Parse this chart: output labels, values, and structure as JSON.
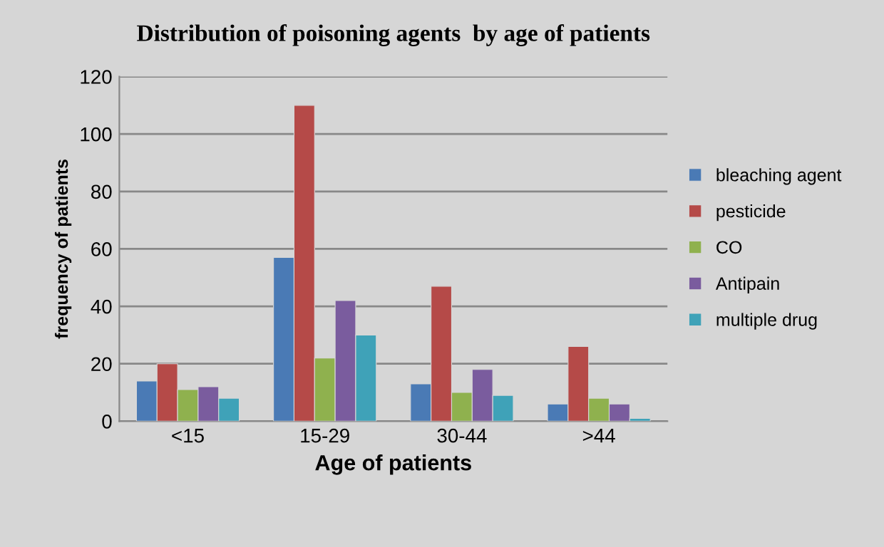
{
  "chart_data": {
    "type": "bar",
    "title": "Distribution of poisoning agents  by age of patients",
    "xlabel": "Age of patients",
    "ylabel": "frequency of patients",
    "categories": [
      "<15",
      "15-29",
      "30-44",
      ">44"
    ],
    "series": [
      {
        "name": "bleaching agent",
        "color": "#4a7ab5",
        "values": [
          14,
          57,
          13,
          6
        ]
      },
      {
        "name": "pesticide",
        "color": "#b54a48",
        "values": [
          20,
          110,
          47,
          26
        ]
      },
      {
        "name": "CO",
        "color": "#8fb14e",
        "values": [
          11,
          22,
          10,
          8
        ]
      },
      {
        "name": "Antipain",
        "color": "#7a5c9e",
        "values": [
          12,
          42,
          18,
          6
        ]
      },
      {
        "name": "multiple drug",
        "color": "#3fa2b8",
        "values": [
          8,
          30,
          9,
          1
        ]
      }
    ],
    "ylim": [
      0,
      120
    ],
    "yticks": [
      0,
      20,
      40,
      60,
      80,
      100,
      120
    ],
    "grid": "y",
    "legend": "right"
  }
}
